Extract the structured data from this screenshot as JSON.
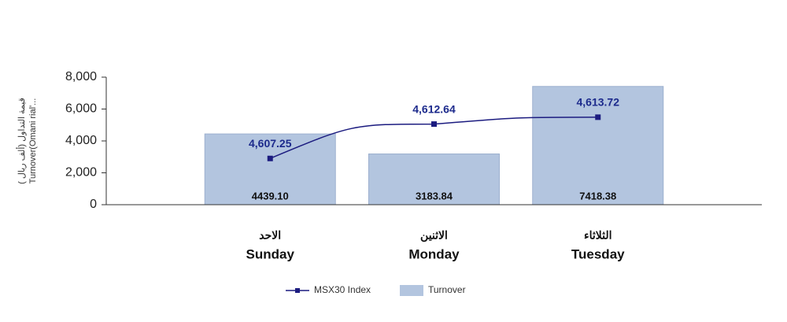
{
  "chart_data": {
    "type": "bar-line",
    "categories": [
      "Sunday",
      "Monday",
      "Tuesday"
    ],
    "categories_ar": [
      "الاحد",
      "الاثنين",
      "الثلاثاء"
    ],
    "ylabel": [
      "( قيمة التداول (ألف ريال",
      "Turnover(Omani rial'..."
    ],
    "ylim": [
      0,
      8000
    ],
    "yticks": [
      {
        "value": 0,
        "label": "0"
      },
      {
        "value": 2000,
        "label": "2,000"
      },
      {
        "value": 4000,
        "label": "4,000"
      },
      {
        "value": 6000,
        "label": "6,000"
      },
      {
        "value": 8000,
        "label": "8,000"
      }
    ],
    "y2lim": [
      4600,
      4620
    ],
    "series": [
      {
        "name": "Turnover",
        "type": "bar",
        "color": "#b3c5df",
        "values": [
          4439.1,
          3183.84,
          7418.38
        ],
        "value_labels": [
          "4439.10",
          "3183.84",
          "7418.38"
        ]
      },
      {
        "name": "MSX30 Index",
        "type": "line",
        "axis": "y2",
        "color": "#1c1c80",
        "values": [
          4607.25,
          4612.64,
          4613.72
        ],
        "value_labels": [
          "4,607.25",
          "4,612.64",
          "4,613.72"
        ]
      }
    ]
  }
}
